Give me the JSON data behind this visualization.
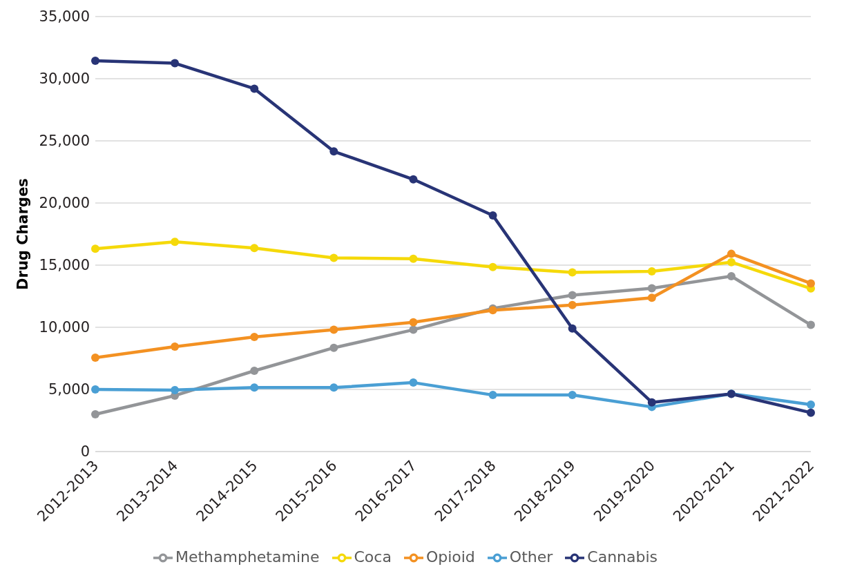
{
  "chart_data": {
    "type": "line",
    "ylabel": "Drug Charges",
    "categories": [
      "2012-2013",
      "2013-2014",
      "2014-2015",
      "2015-2016",
      "2016-2017",
      "2017-2018",
      "2018-2019",
      "2019-2020",
      "2020-2021",
      "2021-2022"
    ],
    "series": [
      {
        "name": "Methamphetamine",
        "color": "#939598",
        "values": [
          3000,
          4500,
          6500,
          8350,
          9800,
          11520,
          12580,
          13140,
          14110,
          10190
        ]
      },
      {
        "name": "Coca",
        "color": "#f5d90a",
        "values": [
          16320,
          16880,
          16380,
          15580,
          15520,
          14850,
          14420,
          14500,
          15240,
          13120
        ]
      },
      {
        "name": "Opioid",
        "color": "#f39122",
        "values": [
          7550,
          8440,
          9220,
          9800,
          10400,
          11370,
          11790,
          12370,
          15910,
          13530
        ]
      },
      {
        "name": "Other",
        "color": "#4a9fd4",
        "values": [
          5000,
          4950,
          5150,
          5150,
          5550,
          4550,
          4550,
          3590,
          4650,
          3780
        ]
      },
      {
        "name": "Cannabis",
        "color": "#283476",
        "values": [
          31450,
          31250,
          29200,
          24150,
          21900,
          19000,
          9900,
          3960,
          4640,
          3130
        ]
      }
    ],
    "ylim": [
      0,
      35000
    ],
    "yticks": [
      0,
      {
        "value": 5000,
        "label": "5,000"
      },
      {
        "value": 10000,
        "label": "10,000"
      },
      {
        "value": 15000,
        "label": "15,000"
      },
      {
        "value": 20000,
        "label": "20,000"
      },
      {
        "value": 25000,
        "label": "25,000"
      },
      {
        "value": 30000,
        "label": "30,000"
      },
      {
        "value": 35000,
        "label": "35,000"
      }
    ],
    "grid": "y",
    "legend": "bottom",
    "marker": "circle",
    "line_style": "solid"
  }
}
